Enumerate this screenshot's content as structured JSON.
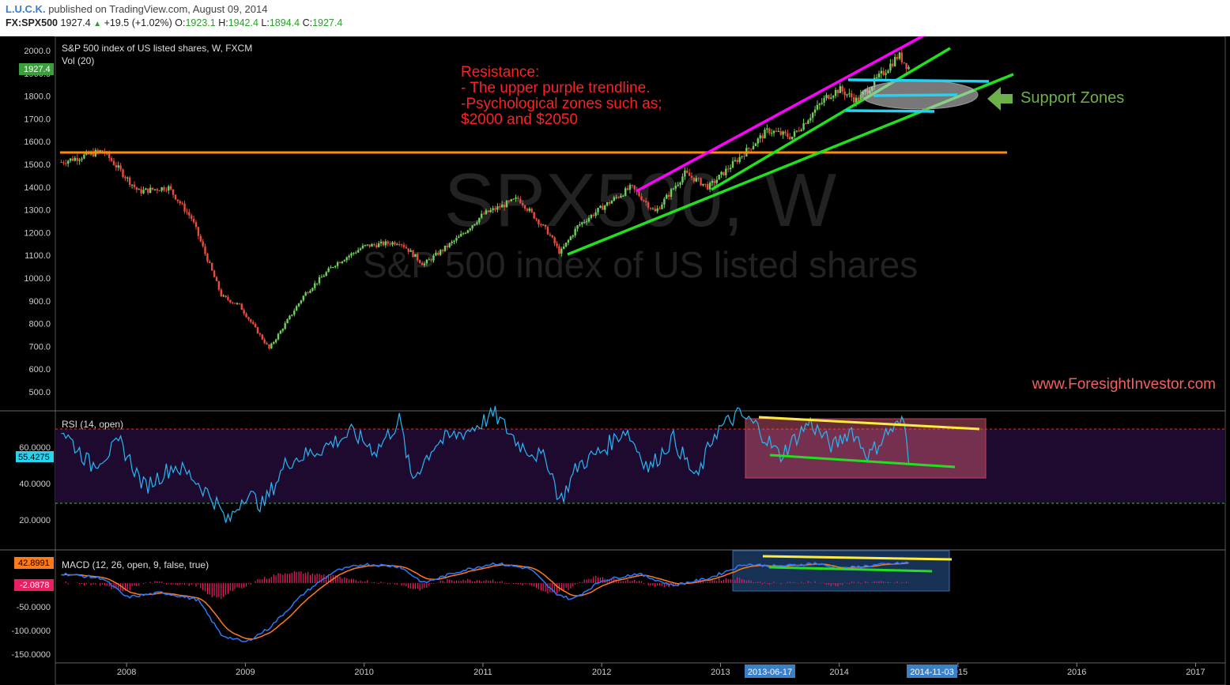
{
  "header": {
    "author": "L.U.C.K.",
    "published": "published on TradingView.com, August 09, 2014",
    "symbol": "FX:SPX500",
    "last": "1927.4",
    "change": "+19.5 (+1.02%)",
    "o_label": "O:",
    "o_value": "1923.1",
    "h_label": "H:",
    "h_value": "1942.4",
    "l_label": "L:",
    "l_value": "1894.4",
    "c_label": "C:",
    "c_value": "1927.4"
  },
  "main_pane": {
    "title": "S&P 500 index of US listed shares, W, FXCM",
    "vol_label": "Vol (20)",
    "watermark_big": "SPX500, W",
    "watermark_small": "S&P 500 index of US listed shares",
    "price_tag": "1927.4",
    "y_ticks": [
      "2000.0",
      "1900.0",
      "1800.0",
      "1700.0",
      "1600.0",
      "1500.0",
      "1400.0",
      "1300.0",
      "1200.0",
      "1100.0",
      "1000.0",
      "900.0",
      "800.0",
      "700.0",
      "600.0",
      "500.0"
    ],
    "resistance_lines": [
      "Resistance:",
      "- The upper purple trendline.",
      "-Psychological zones such as;",
      "$2000 and $2050"
    ],
    "support_label": "Support Zones",
    "website": "www.ForesightInvestor.com"
  },
  "rsi_pane": {
    "label": "RSI (14, open)",
    "tag": "55.4275",
    "y_ticks": [
      "60.0000",
      "40.0000",
      "20.0000"
    ]
  },
  "macd_pane": {
    "label": "MACD (12, 26, open, 9, false, true)",
    "tag_macd": "42.8991",
    "tag_hist": "-2.0878",
    "y_ticks": [
      "-50.0000",
      "-100.0000",
      "-150.0000"
    ]
  },
  "x_axis": {
    "ticks": [
      "2008",
      "2009",
      "2010",
      "2011",
      "2012",
      "2013",
      "2014",
      "2015",
      "2016",
      "2017"
    ],
    "highlight_start": "2013-06-17",
    "highlight_end": "2014-11-03"
  },
  "colors": {
    "background": "#000000",
    "up": "#6fd15b",
    "down": "#e74c3c",
    "resistance_line": "#ff00ff",
    "trendline": "#22e01f",
    "horizontal_level": "#ff8c00",
    "support_line": "#22d3f5",
    "rsi_line": "#29b6f6",
    "macd_line": "#2979ff",
    "signal_line": "#ff7a1a",
    "histogram": "#e91e63",
    "annotation_red": "#ff2020",
    "support_text": "#6db04a"
  },
  "chart_data": {
    "type": "line",
    "title": "S&P 500 index of US listed shares, W, FXCM",
    "x_unit": "year",
    "series": [
      {
        "name": "S&P 500 index of US listed shares, W, FXCM",
        "x": [
          2007.45,
          2007.8,
          2008.1,
          2008.35,
          2008.55,
          2008.8,
          2008.95,
          2009.2,
          2009.5,
          2009.75,
          2010.0,
          2010.3,
          2010.5,
          2010.8,
          2011.0,
          2011.3,
          2011.55,
          2011.65,
          2011.8,
          2012.0,
          2012.25,
          2012.45,
          2012.7,
          2012.9,
          2013.1,
          2013.4,
          2013.6,
          2013.9,
          2014.0,
          2014.15,
          2014.4,
          2014.5,
          2014.58
        ],
        "values": [
          1510,
          1560,
          1380,
          1400,
          1260,
          920,
          880,
          690,
          930,
          1060,
          1140,
          1160,
          1060,
          1180,
          1280,
          1350,
          1200,
          1110,
          1230,
          1310,
          1400,
          1290,
          1460,
          1400,
          1500,
          1650,
          1620,
          1800,
          1830,
          1780,
          1920,
          1980,
          1927
        ]
      }
    ],
    "ylim": [
      450,
      2050
    ],
    "xlim": [
      2007.4,
      2017.25
    ],
    "rsi": {
      "name": "RSI (14, open)",
      "x": [
        2007.45,
        2007.7,
        2007.95,
        2008.15,
        2008.4,
        2008.55,
        2008.75,
        2008.85,
        2009.0,
        2009.15,
        2009.35,
        2009.6,
        2009.9,
        2010.1,
        2010.3,
        2010.4,
        2010.6,
        2010.9,
        2011.1,
        2011.3,
        2011.55,
        2011.65,
        2011.8,
        2012.0,
        2012.2,
        2012.4,
        2012.6,
        2012.8,
        2012.95,
        2013.15,
        2013.3,
        2013.5,
        2013.75,
        2013.95,
        2014.1,
        2014.25,
        2014.4,
        2014.55,
        2014.58
      ],
      "values": [
        70,
        50,
        62,
        38,
        50,
        44,
        30,
        18,
        35,
        28,
        52,
        58,
        68,
        58,
        75,
        42,
        62,
        70,
        78,
        62,
        52,
        30,
        50,
        58,
        70,
        48,
        65,
        42,
        68,
        78,
        72,
        55,
        74,
        60,
        70,
        55,
        68,
        74,
        55
      ]
    },
    "macd": {
      "name": "MACD (12, 26, open, 9, false, true)",
      "x": [
        2007.45,
        2007.8,
        2008.0,
        2008.3,
        2008.6,
        2008.8,
        2009.0,
        2009.2,
        2009.5,
        2009.75,
        2010.0,
        2010.3,
        2010.5,
        2010.8,
        2011.1,
        2011.4,
        2011.6,
        2011.75,
        2012.0,
        2012.3,
        2012.6,
        2012.9,
        2013.2,
        2013.5,
        2013.8,
        2014.0,
        2014.3,
        2014.58
      ],
      "values": [
        20,
        10,
        -30,
        -20,
        -35,
        -110,
        -125,
        -95,
        -20,
        25,
        40,
        35,
        0,
        25,
        42,
        30,
        -20,
        -35,
        5,
        20,
        -5,
        10,
        40,
        35,
        42,
        30,
        38,
        42.8991
      ]
    },
    "macd_histogram_last": -2.0878,
    "levels": {
      "horizontal_resistance": 1560,
      "rsi_upper": 70,
      "rsi_lower": 30
    }
  }
}
